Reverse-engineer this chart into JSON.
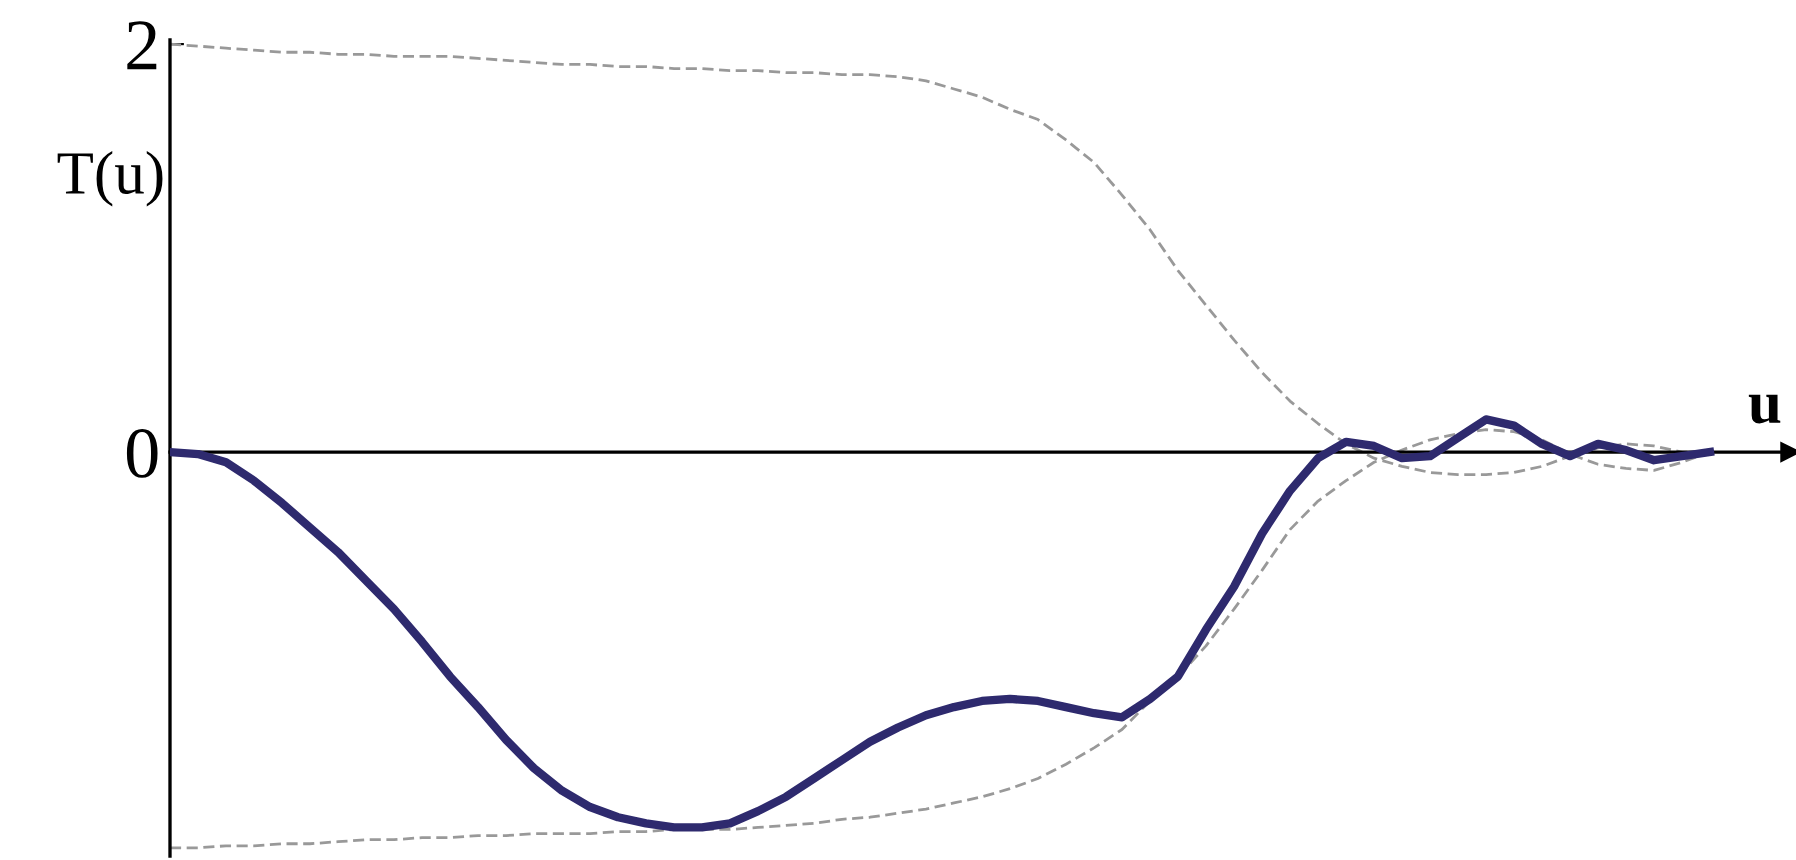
{
  "chart_data": {
    "type": "line",
    "xlabel": "u",
    "ylabel": "T(u)",
    "ylim": [
      -1.98,
      2.02
    ],
    "yticks": [
      0,
      2
    ],
    "tick_labels": "y",
    "legend": false,
    "marker": "none",
    "categories": [
      null,
      null,
      null,
      null,
      null,
      null,
      null,
      null,
      null,
      null,
      null,
      null,
      null,
      null,
      null,
      null,
      null,
      null,
      null,
      null,
      null,
      null,
      null,
      null,
      null,
      null,
      null,
      null,
      null,
      null,
      null,
      null,
      null,
      null,
      null,
      null,
      null,
      null,
      null,
      null,
      null,
      null,
      null,
      null,
      null,
      null,
      null,
      null,
      null,
      null,
      null,
      null,
      null,
      null,
      null,
      null
    ],
    "series": [
      {
        "color": "#999999",
        "line_style": "dashed",
        "values": [
          2.0,
          1.99,
          1.98,
          1.97,
          1.96,
          1.96,
          1.95,
          1.95,
          1.94,
          1.94,
          1.94,
          1.93,
          1.92,
          1.91,
          1.9,
          1.9,
          1.89,
          1.89,
          1.88,
          1.88,
          1.87,
          1.87,
          1.86,
          1.86,
          1.85,
          1.85,
          1.84,
          1.82,
          1.78,
          1.74,
          1.68,
          1.63,
          1.53,
          1.42,
          1.26,
          1.09,
          0.89,
          0.72,
          0.55,
          0.39,
          0.25,
          0.14,
          0.04,
          -0.03,
          -0.07,
          -0.1,
          -0.11,
          -0.11,
          -0.1,
          -0.07,
          -0.02,
          0.02,
          0.04,
          0.03,
          0.0,
          0
        ]
      },
      {
        "color": "#999999",
        "line_style": "dashed",
        "values": [
          -1.94,
          -1.94,
          -1.93,
          -1.93,
          -1.92,
          -1.92,
          -1.91,
          -1.9,
          -1.9,
          -1.89,
          -1.89,
          -1.88,
          -1.88,
          -1.87,
          -1.87,
          -1.87,
          -1.86,
          -1.86,
          -1.85,
          -1.85,
          -1.85,
          -1.84,
          -1.83,
          -1.82,
          -1.8,
          -1.79,
          -1.77,
          -1.75,
          -1.72,
          -1.69,
          -1.65,
          -1.6,
          -1.53,
          -1.45,
          -1.36,
          -1.22,
          -1.1,
          -0.95,
          -0.77,
          -0.58,
          -0.38,
          -0.24,
          -0.14,
          -0.05,
          0.01,
          0.06,
          0.09,
          0.11,
          0.1,
          0.06,
          -0.01,
          -0.06,
          -0.08,
          -0.09,
          -0.05,
          0
        ]
      },
      {
        "color": "#2e2a6e",
        "line_style": "solid",
        "values": [
          0,
          -0.01,
          -0.05,
          -0.14,
          -0.25,
          -0.37,
          -0.49,
          -0.63,
          -0.77,
          -0.93,
          -1.1,
          -1.25,
          -1.41,
          -1.55,
          -1.66,
          -1.74,
          -1.79,
          -1.82,
          -1.84,
          -1.84,
          -1.82,
          -1.76,
          -1.69,
          -1.6,
          -1.51,
          -1.42,
          -1.35,
          -1.29,
          -1.25,
          -1.22,
          -1.21,
          -1.22,
          -1.25,
          -1.28,
          -1.3,
          -1.21,
          -1.1,
          -0.87,
          -0.66,
          -0.4,
          -0.19,
          -0.03,
          0.05,
          0.03,
          -0.03,
          -0.02,
          0.07,
          0.16,
          0.13,
          0.04,
          -0.02,
          0.04,
          0.01,
          -0.04,
          -0.02,
          0
        ]
      }
    ]
  }
}
